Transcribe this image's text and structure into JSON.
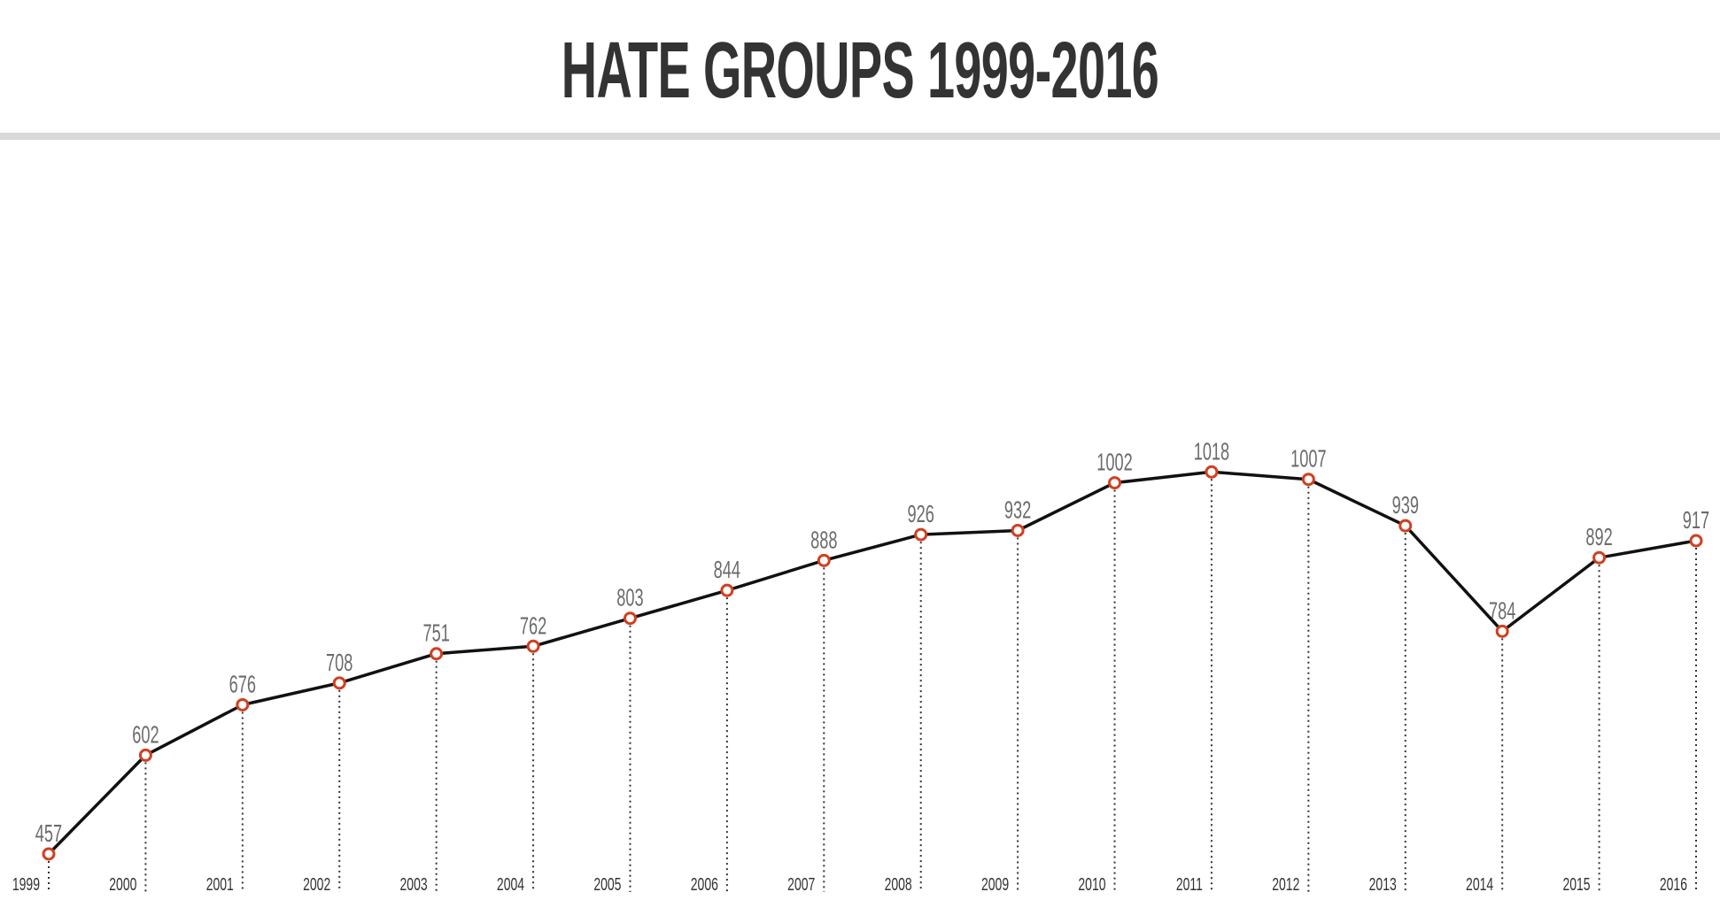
{
  "header": {
    "title": "HATE GROUPS 1999-2016"
  },
  "colors": {
    "line": "#111111",
    "marker": "#d04020",
    "marker_fill": "#ffffff",
    "value_label": "#6b6b6b",
    "year_label": "#333333",
    "guide": "#333333",
    "divider": "#d9d9d9"
  },
  "chart_data": {
    "type": "line",
    "title": "HATE GROUPS 1999-2016",
    "xlabel": "",
    "ylabel": "",
    "categories": [
      "1999",
      "2000",
      "2001",
      "2002",
      "2003",
      "2004",
      "2005",
      "2006",
      "2007",
      "2008",
      "2009",
      "2010",
      "2011",
      "2012",
      "2013",
      "2014",
      "2015",
      "2016"
    ],
    "series": [
      {
        "name": "Hate groups",
        "values": [
          457,
          602,
          676,
          708,
          751,
          762,
          803,
          844,
          888,
          926,
          932,
          1002,
          1018,
          1007,
          939,
          784,
          892,
          917
        ]
      }
    ],
    "data_labels": true,
    "grid": false,
    "legend": "none",
    "ylim": [
      457,
      1018
    ]
  }
}
